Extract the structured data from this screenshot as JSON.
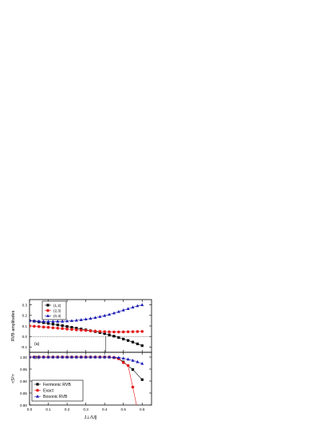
{
  "chart_data": [
    {
      "type": "line",
      "panel_label": "(a)",
      "ylabel": "RVB amplitudes",
      "xlim": [
        0.0,
        0.65
      ],
      "ylim": [
        -0.15,
        0.35
      ],
      "yticks": [
        "-0.1",
        "0.0",
        "0.1",
        "0.2",
        "0.3"
      ],
      "ytick_values": [
        -0.1,
        0.0,
        0.1,
        0.2,
        0.3
      ],
      "grid": false,
      "legend_position": "top-left",
      "reference_lines": {
        "horizontal_dotted_y": 0.0,
        "vertical_x": 0.405
      },
      "x": [
        0.0,
        0.025,
        0.05,
        0.075,
        0.1,
        0.125,
        0.15,
        0.175,
        0.2,
        0.225,
        0.25,
        0.275,
        0.3,
        0.325,
        0.35,
        0.375,
        0.4,
        0.425,
        0.45,
        0.475,
        0.5,
        0.525,
        0.55,
        0.575,
        0.6
      ],
      "series": [
        {
          "name": "(1,2)",
          "color": "#000000",
          "marker": "square",
          "values": [
            0.15,
            0.145,
            0.138,
            0.131,
            0.124,
            0.117,
            0.11,
            0.103,
            0.095,
            0.087,
            0.079,
            0.071,
            0.063,
            0.055,
            0.046,
            0.037,
            0.027,
            0.015,
            0.003,
            -0.01,
            -0.024,
            -0.038,
            -0.053,
            -0.07,
            -0.087
          ]
        },
        {
          "name": "(2,3)",
          "color": "#e41a1a",
          "marker": "circle",
          "values": [
            0.1,
            0.097,
            0.094,
            0.09,
            0.087,
            0.083,
            0.079,
            0.075,
            0.071,
            0.067,
            0.063,
            0.06,
            0.057,
            0.054,
            0.051,
            0.048,
            0.046,
            0.044,
            0.043,
            0.043,
            0.044,
            0.045,
            0.046,
            0.047,
            0.048
          ]
        },
        {
          "name": "(0,3)",
          "color": "#1c1cb4",
          "marker": "triangle",
          "values": [
            0.15,
            0.147,
            0.145,
            0.143,
            0.142,
            0.142,
            0.143,
            0.144,
            0.146,
            0.149,
            0.153,
            0.158,
            0.164,
            0.171,
            0.179,
            0.188,
            0.198,
            0.209,
            0.222,
            0.235,
            0.25,
            0.263,
            0.277,
            0.29,
            0.3
          ]
        }
      ]
    },
    {
      "type": "line",
      "panel_label": "(b)",
      "ylabel": "<S²>",
      "xlabel": "J⊥/U∥",
      "xlim": [
        0.0,
        0.65
      ],
      "ylim": [
        0.8,
        1.02
      ],
      "xticks": [
        "0.0",
        "0.1",
        "0.2",
        "0.3",
        "0.4",
        "0.5",
        "0.6"
      ],
      "xtick_values": [
        0.0,
        0.1,
        0.2,
        0.3,
        0.4,
        0.5,
        0.6
      ],
      "yticks": [
        "0.80",
        "0.85",
        "0.90",
        "0.95",
        "1.00"
      ],
      "ytick_values": [
        0.8,
        0.85,
        0.9,
        0.95,
        1.0
      ],
      "grid": false,
      "legend_position": "bottom-left",
      "series": [
        {
          "name": "Fermionic RVB",
          "color": "#000000",
          "marker": "square",
          "x": [
            0.0,
            0.025,
            0.05,
            0.075,
            0.1,
            0.125,
            0.15,
            0.175,
            0.2,
            0.225,
            0.25,
            0.275,
            0.3,
            0.325,
            0.35,
            0.375,
            0.4,
            0.425,
            0.45,
            0.475,
            0.5,
            0.55,
            0.6
          ],
          "values": [
            1.0,
            1.0,
            1.0,
            1.0,
            1.0,
            1.0,
            1.0,
            1.0,
            1.0,
            1.0,
            1.0,
            1.0,
            1.0,
            1.0,
            1.0,
            1.0,
            1.0,
            1.0,
            0.998,
            0.994,
            0.98,
            0.948,
            0.906
          ]
        },
        {
          "name": "Exact",
          "color": "#e41a1a",
          "marker": "circle",
          "x": [
            0.0,
            0.025,
            0.05,
            0.075,
            0.1,
            0.125,
            0.15,
            0.175,
            0.2,
            0.225,
            0.25,
            0.275,
            0.3,
            0.325,
            0.35,
            0.375,
            0.4,
            0.425,
            0.45,
            0.475,
            0.5,
            0.525,
            0.55,
            0.575
          ],
          "values": [
            1.0,
            1.0,
            1.0,
            1.0,
            1.0,
            1.0,
            1.0,
            1.0,
            1.0,
            1.0,
            1.0,
            1.0,
            1.0,
            1.0,
            1.0,
            1.0,
            1.0,
            1.0,
            0.998,
            0.993,
            0.977,
            0.965,
            0.875,
            0.78
          ]
        },
        {
          "name": "Bosonic RVB",
          "color": "#1c1cb4",
          "marker": "triangle",
          "x": [
            0.0,
            0.025,
            0.05,
            0.075,
            0.1,
            0.125,
            0.15,
            0.175,
            0.2,
            0.225,
            0.25,
            0.275,
            0.3,
            0.325,
            0.35,
            0.375,
            0.4,
            0.425,
            0.45,
            0.475,
            0.5,
            0.525,
            0.55,
            0.575,
            0.6
          ],
          "values": [
            1.0,
            1.0,
            1.0,
            1.0,
            1.0,
            1.0,
            1.0,
            1.0,
            1.0,
            1.0,
            1.0,
            1.0,
            1.0,
            1.0,
            1.0,
            1.0,
            1.0,
            1.0,
            0.999,
            0.998,
            0.995,
            0.991,
            0.986,
            0.98,
            0.973
          ]
        }
      ]
    }
  ]
}
